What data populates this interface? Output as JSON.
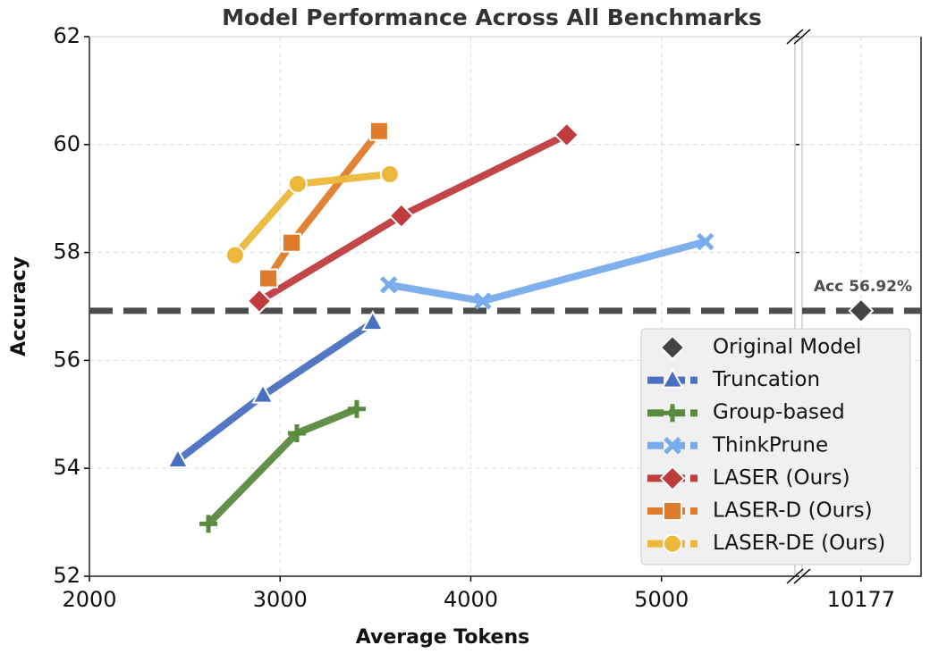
{
  "chart_data": {
    "type": "line",
    "title": "Model Performance Across All Benchmarks",
    "x_label": "Average Tokens",
    "y_label": "Accuracy",
    "xlim": [
      2000,
      5700
    ],
    "xticks": [
      2000,
      3000,
      4000,
      5000
    ],
    "x2lim": [
      9870,
      10490
    ],
    "x2ticks": [
      10177
    ],
    "ylim": [
      52,
      62
    ],
    "yticks": [
      52,
      54,
      56,
      58,
      60,
      62
    ],
    "grid": true,
    "legend": "lower right",
    "reference": {
      "value": 56.92,
      "label": "Acc 56.92%",
      "color": "#4d4d4d"
    },
    "series": [
      {
        "name": "Original Model",
        "color": "#444444",
        "marker": "diamond",
        "axis": "x2",
        "x": [
          10177
        ],
        "values": [
          56.92
        ]
      },
      {
        "name": "Truncation",
        "color": "#4a70c2",
        "marker": "triangle",
        "x": [
          2464,
          2910,
          3486
        ],
        "values": [
          54.15,
          55.35,
          56.7
        ]
      },
      {
        "name": "Group-based",
        "color": "#5a8a3e",
        "marker": "plus",
        "x": [
          2624,
          3088,
          3402
        ],
        "values": [
          52.97,
          54.65,
          55.1
        ]
      },
      {
        "name": "ThinkPrune",
        "color": "#78aced",
        "marker": "cross",
        "x": [
          3570,
          4063,
          5230
        ],
        "values": [
          57.4,
          57.1,
          58.2
        ]
      },
      {
        "name": "LASER (Ours)",
        "color": "#bf3b3d",
        "marker": "diamond",
        "x": [
          2891,
          3636,
          4503
        ],
        "values": [
          57.1,
          58.68,
          60.18
        ]
      },
      {
        "name": "LASER-D (Ours)",
        "color": "#df7b2a",
        "marker": "square",
        "x": [
          2938,
          3060,
          3519
        ],
        "values": [
          57.52,
          58.18,
          60.25
        ]
      },
      {
        "name": "LASER-DE (Ours)",
        "color": "#ebb83a",
        "marker": "circle",
        "x": [
          2764,
          3092,
          3575
        ],
        "values": [
          57.95,
          59.27,
          59.45
        ]
      }
    ]
  }
}
